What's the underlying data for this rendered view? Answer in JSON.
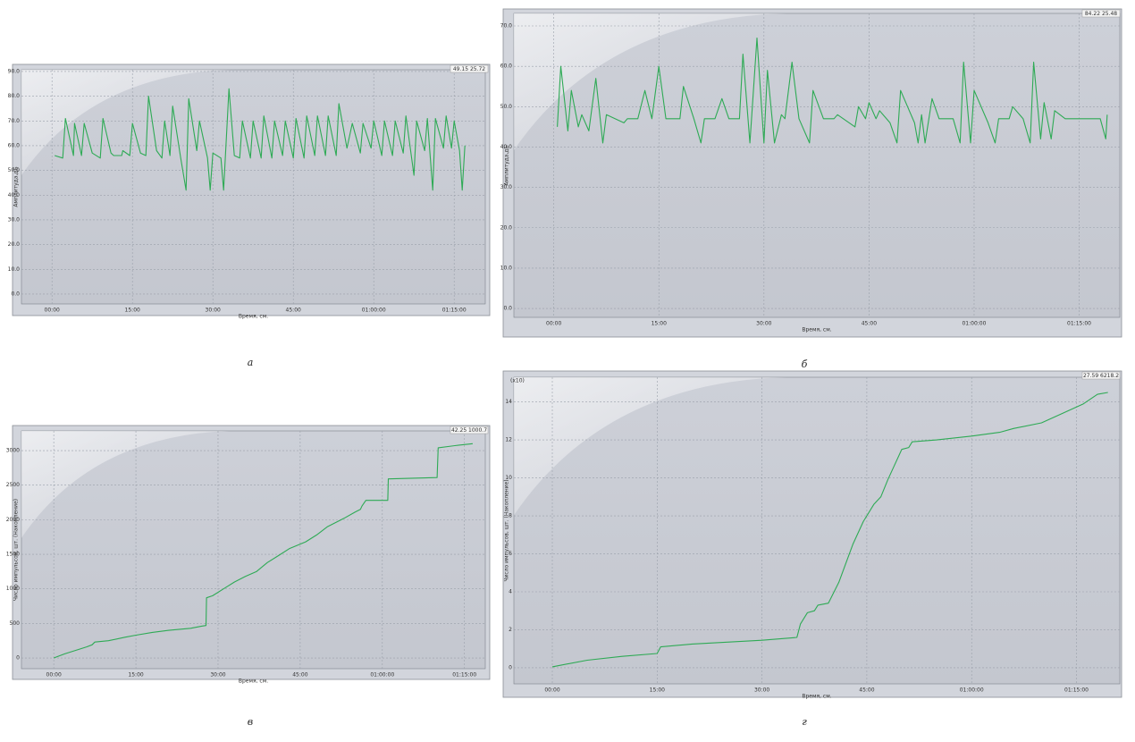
{
  "chart_data": [
    {
      "type": "line",
      "panel_label": "а",
      "corner_text": "49.15 25.72",
      "xlabel": "Время, см.",
      "ylabel": "Амплитуда,дБ",
      "color": "#2eaa55",
      "xlim": [
        -5.7,
        80.8
      ],
      "ylim": [
        -4,
        90.7
      ],
      "xticks": [
        {
          "value": 0,
          "label": "00:00"
        },
        {
          "value": 15,
          "label": "15:00"
        },
        {
          "value": 30,
          "label": "30:00"
        },
        {
          "value": 45,
          "label": "45:00"
        },
        {
          "value": 60,
          "label": "01:00:00"
        },
        {
          "value": 75,
          "label": "01:15:00"
        }
      ],
      "yticks": [
        {
          "value": 0,
          "label": "0.0"
        },
        {
          "value": 10,
          "label": "10.0"
        },
        {
          "value": 20,
          "label": "20.0"
        },
        {
          "value": 30,
          "label": "30.0"
        },
        {
          "value": 40,
          "label": "40.0"
        },
        {
          "value": 50,
          "label": "50.0"
        },
        {
          "value": 60,
          "label": "60.0"
        },
        {
          "value": 70,
          "label": "70.0"
        },
        {
          "value": 80,
          "label": "80.0"
        },
        {
          "value": 90,
          "label": "90.0"
        }
      ],
      "x": [
        0.5,
        2,
        2.5,
        4,
        4.2,
        5.5,
        6,
        7.5,
        9,
        9.5,
        11,
        11.5,
        13,
        13.2,
        14.5,
        15,
        16.5,
        17.5,
        18,
        19.5,
        20.5,
        21,
        22,
        22.5,
        24,
        25,
        25.5,
        27,
        27.5,
        29,
        29.5,
        30,
        31.5,
        32,
        33,
        34,
        35,
        35.5,
        37,
        37.5,
        39,
        39.5,
        41,
        41.5,
        43,
        43.5,
        45,
        45.5,
        47,
        47.5,
        49,
        49.5,
        51,
        51.5,
        53,
        53.5,
        55,
        56,
        57.5,
        58,
        59.5,
        60,
        61.5,
        62,
        63.5,
        64,
        65.5,
        66,
        67.5,
        68,
        69.5,
        70,
        71,
        71.5,
        73,
        73.5,
        74.5,
        75,
        76,
        76.5,
        77
      ],
      "values": [
        56,
        55,
        71,
        56,
        69,
        56,
        69,
        57,
        55,
        71,
        57,
        56,
        56,
        58,
        56,
        69,
        57,
        56,
        80,
        58,
        55,
        70,
        56,
        76,
        55,
        42,
        79,
        58,
        70,
        55,
        42,
        57,
        55,
        42,
        83,
        56,
        55,
        70,
        55,
        70,
        55,
        72,
        55,
        70,
        56,
        70,
        55,
        71,
        55,
        72,
        56,
        72,
        56,
        72,
        56,
        77,
        59,
        69,
        57,
        69,
        59,
        70,
        56,
        70,
        56,
        70,
        57,
        72,
        48,
        70,
        58,
        71,
        42,
        71,
        59,
        72,
        59,
        70,
        58,
        42,
        60
      ]
    },
    {
      "type": "line",
      "panel_label": "б",
      "corner_text": "84.22 25.48",
      "xlabel": "Время, см.",
      "ylabel": "Амплитуда,дБ",
      "color": "#2eaa55",
      "xlim": [
        -5.7,
        80.8
      ],
      "ylim": [
        -2.2,
        73.1
      ],
      "xticks": [
        {
          "value": 0,
          "label": "00:00"
        },
        {
          "value": 15,
          "label": "15:00"
        },
        {
          "value": 30,
          "label": "30:00"
        },
        {
          "value": 45,
          "label": "45:00"
        },
        {
          "value": 60,
          "label": "01:00:00"
        },
        {
          "value": 75,
          "label": "01:15:00"
        }
      ],
      "yticks": [
        {
          "value": 0,
          "label": "0.0"
        },
        {
          "value": 10,
          "label": "10.0"
        },
        {
          "value": 20,
          "label": "20.0"
        },
        {
          "value": 30,
          "label": "30.0"
        },
        {
          "value": 40,
          "label": "40.0"
        },
        {
          "value": 50,
          "label": "50.0"
        },
        {
          "value": 60,
          "label": "60.0"
        },
        {
          "value": 70,
          "label": "70.0"
        }
      ],
      "x": [
        0.5,
        1,
        2,
        2.5,
        3.5,
        4,
        5,
        6,
        7,
        7.5,
        10,
        10.5,
        12,
        13,
        14,
        15,
        16,
        18,
        18.5,
        20,
        21,
        21.5,
        23,
        24,
        25,
        26.5,
        27,
        28,
        29,
        30,
        30.5,
        31.5,
        32.5,
        33,
        34,
        35,
        36.5,
        37,
        38.5,
        40,
        40.5,
        43,
        43.5,
        44.5,
        45,
        46,
        46.5,
        48,
        49,
        49.5,
        51.5,
        52,
        52.5,
        53,
        54,
        55,
        57,
        58,
        58.5,
        59.5,
        60,
        62,
        63,
        63.5,
        65,
        65.5,
        67,
        68,
        68.5,
        69.5,
        70,
        71,
        71.5,
        73,
        78,
        78.8,
        79
      ],
      "values": [
        45,
        60,
        44,
        54,
        45,
        48,
        44,
        57,
        41,
        48,
        46,
        47,
        47,
        54,
        47,
        60,
        47,
        47,
        55,
        47,
        41,
        47,
        47,
        52,
        47,
        47,
        63,
        41,
        67,
        41,
        59,
        41,
        48,
        47,
        61,
        47,
        41,
        54,
        47,
        47,
        48,
        45,
        50,
        47,
        51,
        47,
        49,
        46,
        41,
        54,
        46,
        41,
        48,
        41,
        52,
        47,
        47,
        41,
        61,
        41,
        54,
        46,
        41,
        47,
        47,
        50,
        47,
        41,
        61,
        42,
        51,
        42,
        49,
        47,
        47,
        42,
        48
      ]
    },
    {
      "type": "line",
      "panel_label": "в",
      "corner_text": "42.25 1000.7",
      "xlabel": "Время, см.",
      "ylabel": "Число импульсов, шт. (Накопление)",
      "color": "#2eaa55",
      "xlim": [
        -5.9,
        78.8
      ],
      "ylim": [
        -155,
        3285
      ],
      "xticks": [
        {
          "value": 0,
          "label": "00:00"
        },
        {
          "value": 15,
          "label": "15:00"
        },
        {
          "value": 30,
          "label": "30:00"
        },
        {
          "value": 45,
          "label": "45:00"
        },
        {
          "value": 60,
          "label": "01:00:00"
        },
        {
          "value": 75,
          "label": "01:15:00"
        }
      ],
      "yticks": [
        0,
        500,
        1000,
        1500,
        2000,
        2500,
        3000
      ],
      "x": [
        0,
        2,
        4,
        6,
        7,
        7.5,
        10,
        13,
        15,
        18,
        21,
        25,
        27,
        27.8,
        27.9,
        29,
        31,
        33,
        35,
        37,
        39,
        41,
        43,
        46,
        48,
        50,
        53,
        55,
        56,
        56.3,
        57,
        61,
        61.1,
        70,
        70.2,
        74,
        76.5
      ],
      "values": [
        0,
        60,
        110,
        160,
        190,
        230,
        250,
        300,
        330,
        370,
        400,
        430,
        460,
        470,
        870,
        900,
        1000,
        1100,
        1180,
        1250,
        1380,
        1480,
        1580,
        1680,
        1780,
        1900,
        2020,
        2110,
        2150,
        2200,
        2280,
        2280,
        2590,
        2610,
        3040,
        3080,
        3100
      ]
    },
    {
      "type": "line",
      "panel_label": "г",
      "corner_text": "27.59 6218.2",
      "annotation": "(x10)",
      "xlabel": "Время, см.",
      "ylabel": "Число импульсов, шт. (Накопление)",
      "color": "#2eaa55",
      "xlim": [
        -5.5,
        81.2
      ],
      "ylim": [
        -0.85,
        15.3
      ],
      "xticks": [
        {
          "value": 0,
          "label": "00:00"
        },
        {
          "value": 15,
          "label": "15:00"
        },
        {
          "value": 30,
          "label": "30:00"
        },
        {
          "value": 45,
          "label": "45:00"
        },
        {
          "value": 60,
          "label": "01:00:00"
        },
        {
          "value": 75,
          "label": "01:15:00"
        }
      ],
      "yticks": [
        0,
        2,
        4,
        6,
        8,
        10,
        12,
        14
      ],
      "x": [
        0,
        5,
        10,
        15,
        15.5,
        20,
        25,
        30,
        35,
        35.5,
        36.5,
        37.5,
        38,
        39.5,
        41,
        43,
        44.5,
        46,
        47,
        48,
        49,
        50,
        51,
        51.5,
        55,
        60,
        64,
        66,
        70,
        73,
        76,
        78,
        79.5
      ],
      "values": [
        0.05,
        0.4,
        0.6,
        0.75,
        1.1,
        1.25,
        1.35,
        1.45,
        1.6,
        2.3,
        2.9,
        3.0,
        3.3,
        3.4,
        4.5,
        6.5,
        7.7,
        8.6,
        9.0,
        9.9,
        10.7,
        11.5,
        11.6,
        11.9,
        12.0,
        12.2,
        12.4,
        12.6,
        12.9,
        13.4,
        13.9,
        14.4,
        14.5
      ]
    }
  ]
}
